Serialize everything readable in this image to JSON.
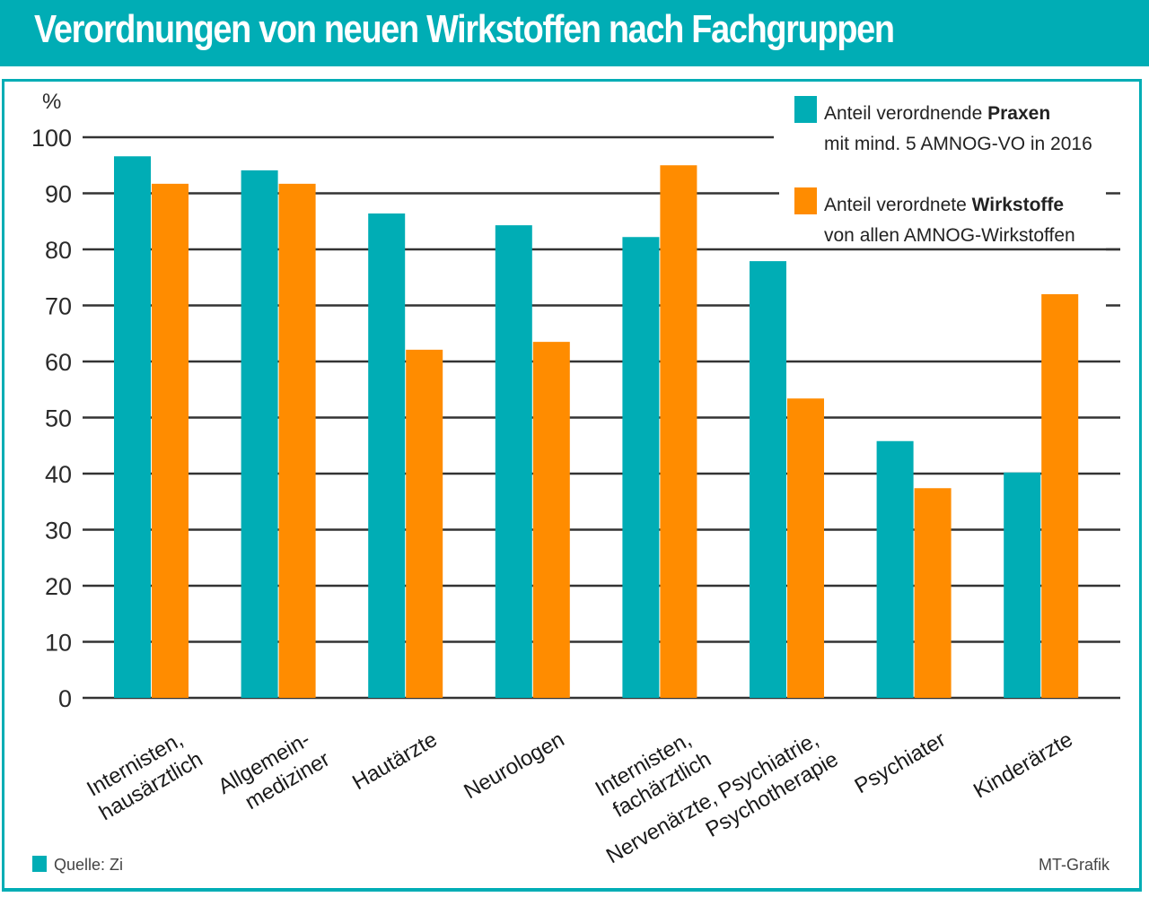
{
  "title": "Verordnungen von neuen Wirkstoffen nach Fachgruppen",
  "source": "Quelle: Zi",
  "credit": "MT-Grafik",
  "colors": {
    "praxen": "#00adb5",
    "wirkstoffe": "#ff8c00",
    "grid": "#333333",
    "brand": "#00adb5"
  },
  "chart_data": {
    "type": "bar",
    "title": "Verordnungen von neuen Wirkstoffen nach Fachgruppen",
    "xlabel": "",
    "ylabel": "%",
    "ylim": [
      0,
      100
    ],
    "yticks": [
      0,
      10,
      20,
      30,
      40,
      50,
      60,
      70,
      80,
      90,
      100
    ],
    "grid": true,
    "legend_position": "top-right",
    "categories": [
      [
        "Internisten,",
        "hausärztlich"
      ],
      [
        "Allgemein-",
        "mediziner"
      ],
      [
        "Hautärzte"
      ],
      [
        "Neurologen"
      ],
      [
        "Internisten,",
        "fachärztlich"
      ],
      [
        "Nervenärzte, Psychiatrie,",
        "Psychotherapie"
      ],
      [
        "Psychiater"
      ],
      [
        "Kinderärzte"
      ]
    ],
    "series": [
      {
        "name": "Anteil verordnende Praxen mit mind. 5 AMNOG-VO in 2016",
        "legend_lines": [
          [
            "Anteil verordnende ",
            "Praxen"
          ],
          [
            "mit mind. 5 AMNOG-VO in 2016",
            ""
          ]
        ],
        "color": "#00adb5",
        "values": [
          96.6,
          94.1,
          86.4,
          84.3,
          82.2,
          77.9,
          45.8,
          40.2
        ]
      },
      {
        "name": "Anteil verordnete Wirkstoffe von allen AMNOG-Wirkstoffen",
        "legend_lines": [
          [
            "Anteil verordnete ",
            "Wirkstoffe"
          ],
          [
            "von allen AMNOG-Wirkstoffen",
            ""
          ]
        ],
        "color": "#ff8c00",
        "values": [
          91.7,
          91.7,
          62.1,
          63.5,
          95.0,
          53.4,
          37.4,
          72.0
        ]
      }
    ]
  }
}
